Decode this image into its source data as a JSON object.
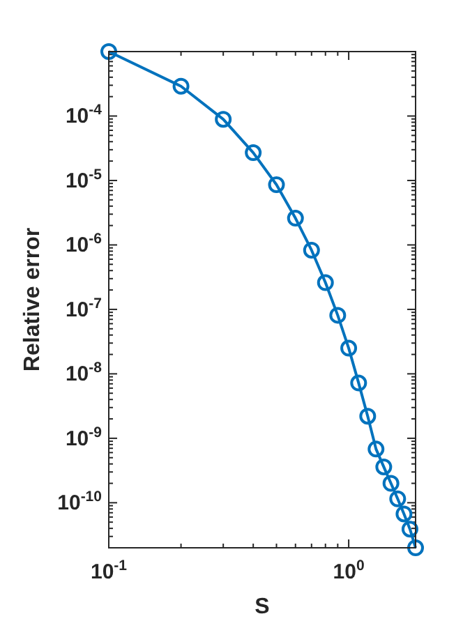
{
  "chart_data": {
    "type": "line",
    "xlabel": "S",
    "ylabel": "Relative error",
    "log": "xy",
    "marker": "circle",
    "line_style": "solid",
    "x": [
      0.1,
      0.2,
      0.3,
      0.4,
      0.5,
      0.6,
      0.7,
      0.8,
      0.9,
      1.0,
      1.1,
      1.2,
      1.3,
      1.4,
      1.5,
      1.6,
      1.7,
      1.8,
      1.9
    ],
    "series": [
      {
        "color": "#0072bd",
        "values": [
          0.001,
          0.00029,
          8.9e-05,
          2.7e-05,
          8.6e-06,
          2.6e-06,
          8.3e-07,
          2.6e-07,
          8.1e-08,
          2.5e-08,
          7.2e-09,
          2.2e-09,
          6.8e-10,
          3.6e-10,
          2e-10,
          1.15e-10,
          6.7e-11,
          3.9e-11,
          2e-11
        ]
      }
    ],
    "xlim": [
      0.1,
      1.9
    ],
    "ylim": [
      2e-11,
      0.001
    ],
    "xticks": [
      {
        "value": 0.1,
        "label": "10$^{-1}$"
      },
      {
        "value": 0.2,
        "label": null
      },
      {
        "value": 0.3,
        "label": null
      },
      {
        "value": 0.4,
        "label": null
      },
      {
        "value": 0.5,
        "label": null
      },
      {
        "value": 0.6,
        "label": null
      },
      {
        "value": 0.7,
        "label": null
      },
      {
        "value": 0.8,
        "label": null
      },
      {
        "value": 0.9,
        "label": null
      },
      {
        "value": 1,
        "label": "10$^{0}$"
      }
    ],
    "yticks": [
      {
        "value": 3e-11,
        "label": null
      },
      {
        "value": 4e-11,
        "label": null
      },
      {
        "value": 5e-11,
        "label": null
      },
      {
        "value": 6e-11,
        "label": null
      },
      {
        "value": 7e-11,
        "label": null
      },
      {
        "value": 8e-11,
        "label": null
      },
      {
        "value": 9e-11,
        "label": null
      },
      {
        "value": 1e-10,
        "label": "10$^{-10}$"
      },
      {
        "value": 2e-10,
        "label": null
      },
      {
        "value": 3e-10,
        "label": null
      },
      {
        "value": 4e-10,
        "label": null
      },
      {
        "value": 5e-10,
        "label": null
      },
      {
        "value": 6e-10,
        "label": null
      },
      {
        "value": 7e-10,
        "label": null
      },
      {
        "value": 8e-10,
        "label": null
      },
      {
        "value": 9e-10,
        "label": null
      },
      {
        "value": 1e-09,
        "label": "10$^{-9}$"
      },
      {
        "value": 2e-09,
        "label": null
      },
      {
        "value": 3e-09,
        "label": null
      },
      {
        "value": 4e-09,
        "label": null
      },
      {
        "value": 5e-09,
        "label": null
      },
      {
        "value": 6e-09,
        "label": null
      },
      {
        "value": 7e-09,
        "label": null
      },
      {
        "value": 8e-09,
        "label": null
      },
      {
        "value": 9e-09,
        "label": null
      },
      {
        "value": 1e-08,
        "label": "10$^{-8}$"
      },
      {
        "value": 2e-08,
        "label": null
      },
      {
        "value": 3e-08,
        "label": null
      },
      {
        "value": 4e-08,
        "label": null
      },
      {
        "value": 5e-08,
        "label": null
      },
      {
        "value": 6e-08,
        "label": null
      },
      {
        "value": 7e-08,
        "label": null
      },
      {
        "value": 8e-08,
        "label": null
      },
      {
        "value": 9e-08,
        "label": null
      },
      {
        "value": 1e-07,
        "label": "10$^{-7}$"
      },
      {
        "value": 2e-07,
        "label": null
      },
      {
        "value": 3e-07,
        "label": null
      },
      {
        "value": 4e-07,
        "label": null
      },
      {
        "value": 5e-07,
        "label": null
      },
      {
        "value": 6e-07,
        "label": null
      },
      {
        "value": 7e-07,
        "label": null
      },
      {
        "value": 8e-07,
        "label": null
      },
      {
        "value": 9e-07,
        "label": null
      },
      {
        "value": 1e-06,
        "label": "10$^{-6}$"
      },
      {
        "value": 2e-06,
        "label": null
      },
      {
        "value": 3e-06,
        "label": null
      },
      {
        "value": 4e-06,
        "label": null
      },
      {
        "value": 5e-06,
        "label": null
      },
      {
        "value": 6e-06,
        "label": null
      },
      {
        "value": 7e-06,
        "label": null
      },
      {
        "value": 8e-06,
        "label": null
      },
      {
        "value": 9e-06,
        "label": null
      },
      {
        "value": 1e-05,
        "label": "10$^{-5}$"
      },
      {
        "value": 2e-05,
        "label": null
      },
      {
        "value": 3e-05,
        "label": null
      },
      {
        "value": 4e-05,
        "label": null
      },
      {
        "value": 5e-05,
        "label": null
      },
      {
        "value": 6e-05,
        "label": null
      },
      {
        "value": 7e-05,
        "label": null
      },
      {
        "value": 8e-05,
        "label": null
      },
      {
        "value": 9e-05,
        "label": null
      },
      {
        "value": 0.0001,
        "label": "10$^{-4}$"
      },
      {
        "value": 0.0002,
        "label": null
      },
      {
        "value": 0.0003,
        "label": null
      },
      {
        "value": 0.0004,
        "label": null
      },
      {
        "value": 0.0005,
        "label": null
      },
      {
        "value": 0.0006,
        "label": null
      },
      {
        "value": 0.0007,
        "label": null
      },
      {
        "value": 0.0008,
        "label": null
      },
      {
        "value": 0.0009,
        "label": null
      }
    ]
  }
}
